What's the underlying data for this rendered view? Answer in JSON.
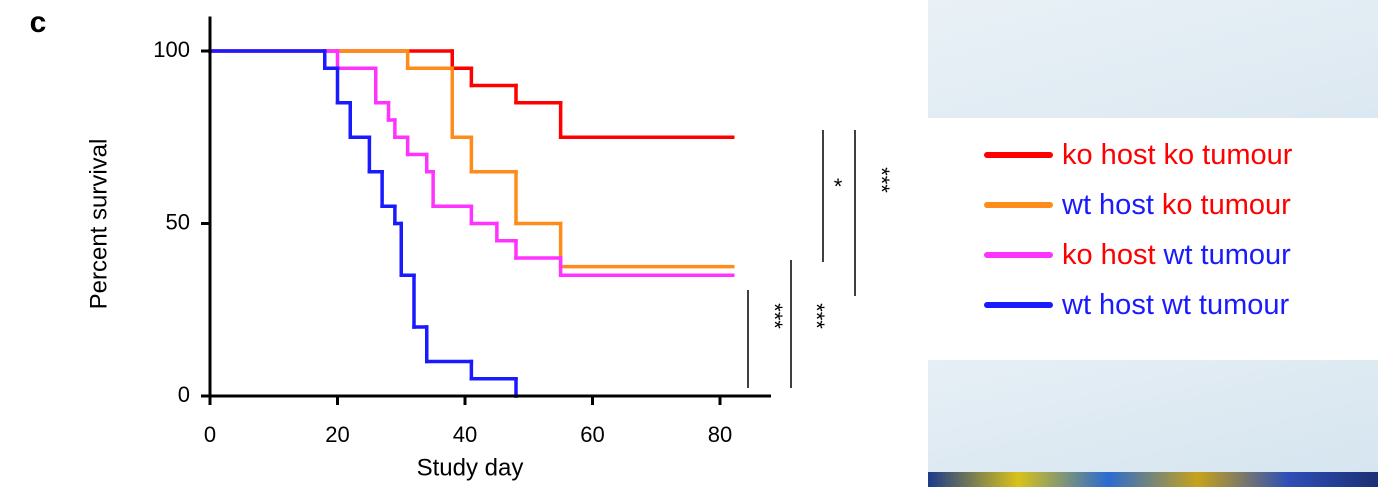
{
  "chart_data": {
    "type": "survival",
    "panel_label": "c",
    "xlabel": "Study day",
    "ylabel": "Percent survival",
    "xlim": [
      0,
      88
    ],
    "ylim": [
      0,
      110
    ],
    "xticks": [
      0,
      20,
      40,
      60,
      80
    ],
    "yticks": [
      0,
      50,
      100
    ],
    "series": [
      {
        "color": "#ff0000",
        "host": {
          "text": "ko host",
          "color": "#ff0000"
        },
        "tumour": {
          "text": "ko tumour",
          "color": "#ff0000"
        },
        "x": [
          0,
          38,
          41,
          48,
          55
        ],
        "values": [
          100,
          95,
          90,
          85,
          75
        ],
        "last_day": 82
      },
      {
        "color": "#ff8c1a",
        "host": {
          "text": "wt host",
          "color": "#1a1aff"
        },
        "tumour": {
          "text": "ko tumour",
          "color": "#ff0000"
        },
        "x": [
          0,
          31,
          38,
          41,
          48,
          55
        ],
        "values": [
          100,
          95,
          75,
          65,
          50,
          37.5
        ],
        "last_day": 82
      },
      {
        "color": "#ff33ff",
        "host": {
          "text": "ko host",
          "color": "#ff0000"
        },
        "tumour": {
          "text": "wt tumour",
          "color": "#1a1aff"
        },
        "x": [
          0,
          20,
          26,
          28,
          29,
          31,
          34,
          35,
          41,
          45,
          48,
          55
        ],
        "values": [
          100,
          95,
          85,
          80,
          75,
          70,
          65,
          55,
          50,
          45,
          40,
          35
        ],
        "last_day": 82
      },
      {
        "color": "#1a1aff",
        "host": {
          "text": "wt host",
          "color": "#1a1aff"
        },
        "tumour": {
          "text": "wt tumour",
          "color": "#1a1aff"
        },
        "x": [
          0,
          18,
          20,
          22,
          25,
          27,
          29,
          30,
          32,
          34,
          41,
          48
        ],
        "values": [
          100,
          95,
          85,
          75,
          65,
          55,
          50,
          35,
          20,
          10,
          5,
          0
        ],
        "last_day": 48
      }
    ],
    "significance": [
      {
        "label": "***"
      },
      {
        "label": "***"
      },
      {
        "label": "*"
      },
      {
        "label": "***"
      }
    ]
  }
}
